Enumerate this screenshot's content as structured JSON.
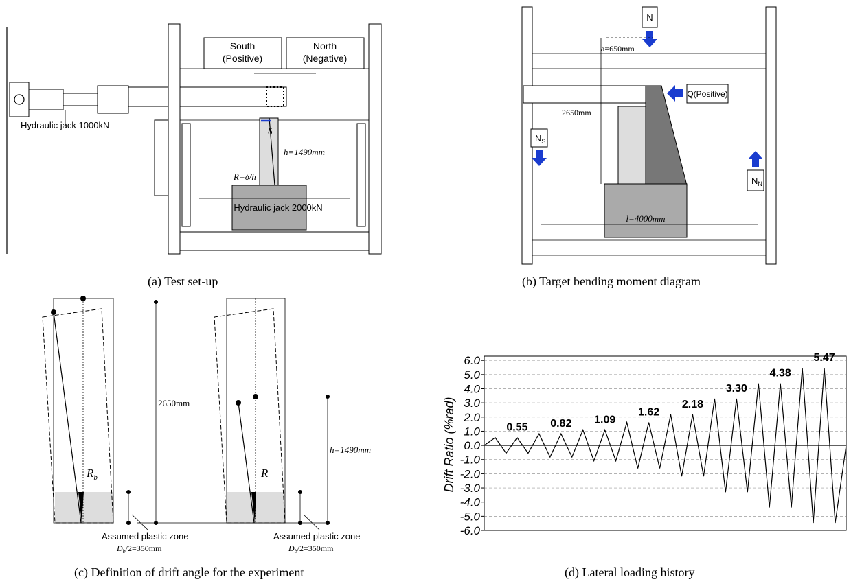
{
  "panel_a": {
    "south": "South",
    "south_sign": "(Positive)",
    "north": "North",
    "north_sign": "(Negative)",
    "jack_1000": "Hydraulic jack 1000kN",
    "delta": "δ",
    "height": "h=1490mm",
    "rotation": "R=δ/h",
    "jack_2000": "Hydraulic jack 2000kN",
    "caption": "(a)    Test set-up"
  },
  "panel_b": {
    "axial": "N",
    "offset": "a=650mm",
    "shear": "Q(Positive)",
    "span": "2650mm",
    "ns_main": "N",
    "ns_sub": "S",
    "nn_main": "N",
    "nn_sub": "N",
    "length": "l=4000mm",
    "caption": "(b)    Target bending moment diagram"
  },
  "panel_c": {
    "rb_main": "R",
    "rb_sub": "b",
    "span": "2650mm",
    "r": "R",
    "height": "h=1490mm",
    "zone_left": "Assumed plastic zone",
    "db_left_main": "D",
    "db_left_sub": "b",
    "db_left_rest": "/2=350mm",
    "zone_right": "Assumed plastic zone",
    "db_right_main": "D",
    "db_right_sub": "b",
    "db_right_rest": "/2=350mm",
    "caption": "(c)    Definition of drift angle for the experiment"
  },
  "chart_data": {
    "type": "line",
    "y_label": "Drift Ratio (%rad)",
    "caption": "(d)    Lateral loading history",
    "values": [
      0,
      0.55,
      -0.55,
      0.55,
      -0.55,
      0.82,
      -0.82,
      0.82,
      -0.82,
      1.09,
      -1.09,
      1.09,
      -1.09,
      1.62,
      -1.62,
      1.62,
      -1.62,
      2.18,
      -2.18,
      2.18,
      -2.18,
      3.3,
      -3.3,
      3.3,
      -3.3,
      4.38,
      -4.38,
      4.38,
      -4.38,
      5.47,
      -5.47,
      5.47,
      -5.47,
      0
    ],
    "color": "#000000",
    "ylim": [
      -6,
      6.3
    ],
    "yticks": [
      {
        "value": 6,
        "label": "6.0"
      },
      {
        "value": 5,
        "label": "5.0"
      },
      {
        "value": 4,
        "label": "4.0"
      },
      {
        "value": 3,
        "label": "3.0"
      },
      {
        "value": 2,
        "label": "2.0"
      },
      {
        "value": 1,
        "label": "1.0"
      },
      {
        "value": 0,
        "label": "0.0"
      },
      {
        "value": -1,
        "label": "-1.0"
      },
      {
        "value": -2,
        "label": "-2.0"
      },
      {
        "value": -3,
        "label": "-3.0"
      },
      {
        "value": -4,
        "label": "-4.0"
      },
      {
        "value": -5,
        "label": "-5.0"
      },
      {
        "value": -6,
        "label": "-6.0"
      }
    ],
    "grid": true,
    "annotations": [
      {
        "value": 0.55,
        "label": "0.55"
      },
      {
        "value": 0.82,
        "label": "0.82"
      },
      {
        "value": 1.09,
        "label": "1.09"
      },
      {
        "value": 1.62,
        "label": "1.62"
      },
      {
        "value": 2.18,
        "label": "2.18"
      },
      {
        "value": 3.3,
        "label": "3.30"
      },
      {
        "value": 4.38,
        "label": "4.38"
      },
      {
        "value": 5.47,
        "label": "5.47"
      }
    ]
  }
}
